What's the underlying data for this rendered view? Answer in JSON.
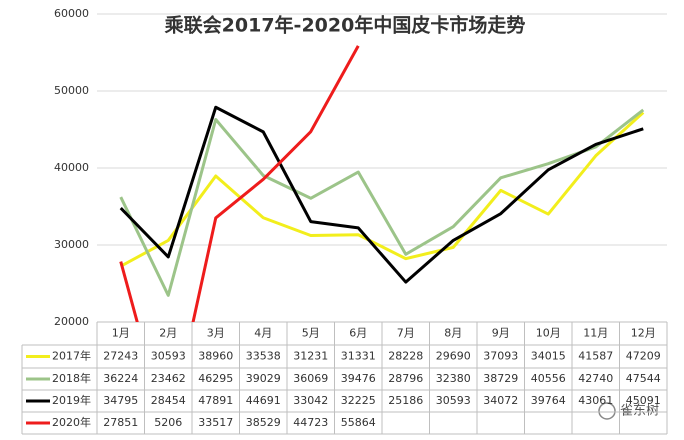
{
  "chart_data": {
    "type": "line",
    "title": "乘联会2017年-2020年中国皮卡市场走势",
    "categories": [
      "1月",
      "2月",
      "3月",
      "4月",
      "5月",
      "6月",
      "7月",
      "8月",
      "9月",
      "10月",
      "11月",
      "12月"
    ],
    "series": [
      {
        "name": "2017年",
        "color": "#f2ee1c",
        "values": [
          27243,
          30593,
          38960,
          33538,
          31231,
          31331,
          28228,
          29690,
          37093,
          34015,
          41587,
          47209
        ]
      },
      {
        "name": "2018年",
        "color": "#9cc489",
        "values": [
          36224,
          23462,
          46295,
          39029,
          36069,
          39476,
          28796,
          32380,
          38729,
          40556,
          42740,
          47544
        ]
      },
      {
        "name": "2019年",
        "color": "#000000",
        "values": [
          34795,
          28454,
          47891,
          44691,
          33042,
          32225,
          25186,
          30593,
          34072,
          39764,
          43061,
          45091
        ]
      },
      {
        "name": "2020年",
        "color": "#ee1c1c",
        "values": [
          27851,
          5206,
          33517,
          38529,
          44723,
          55864,
          null,
          null,
          null,
          null,
          null,
          null
        ]
      }
    ],
    "ylim": [
      20000,
      60000
    ],
    "yticks": [
      20000,
      30000,
      40000,
      50000,
      60000
    ],
    "grid": true,
    "watermark": "雀东树"
  }
}
